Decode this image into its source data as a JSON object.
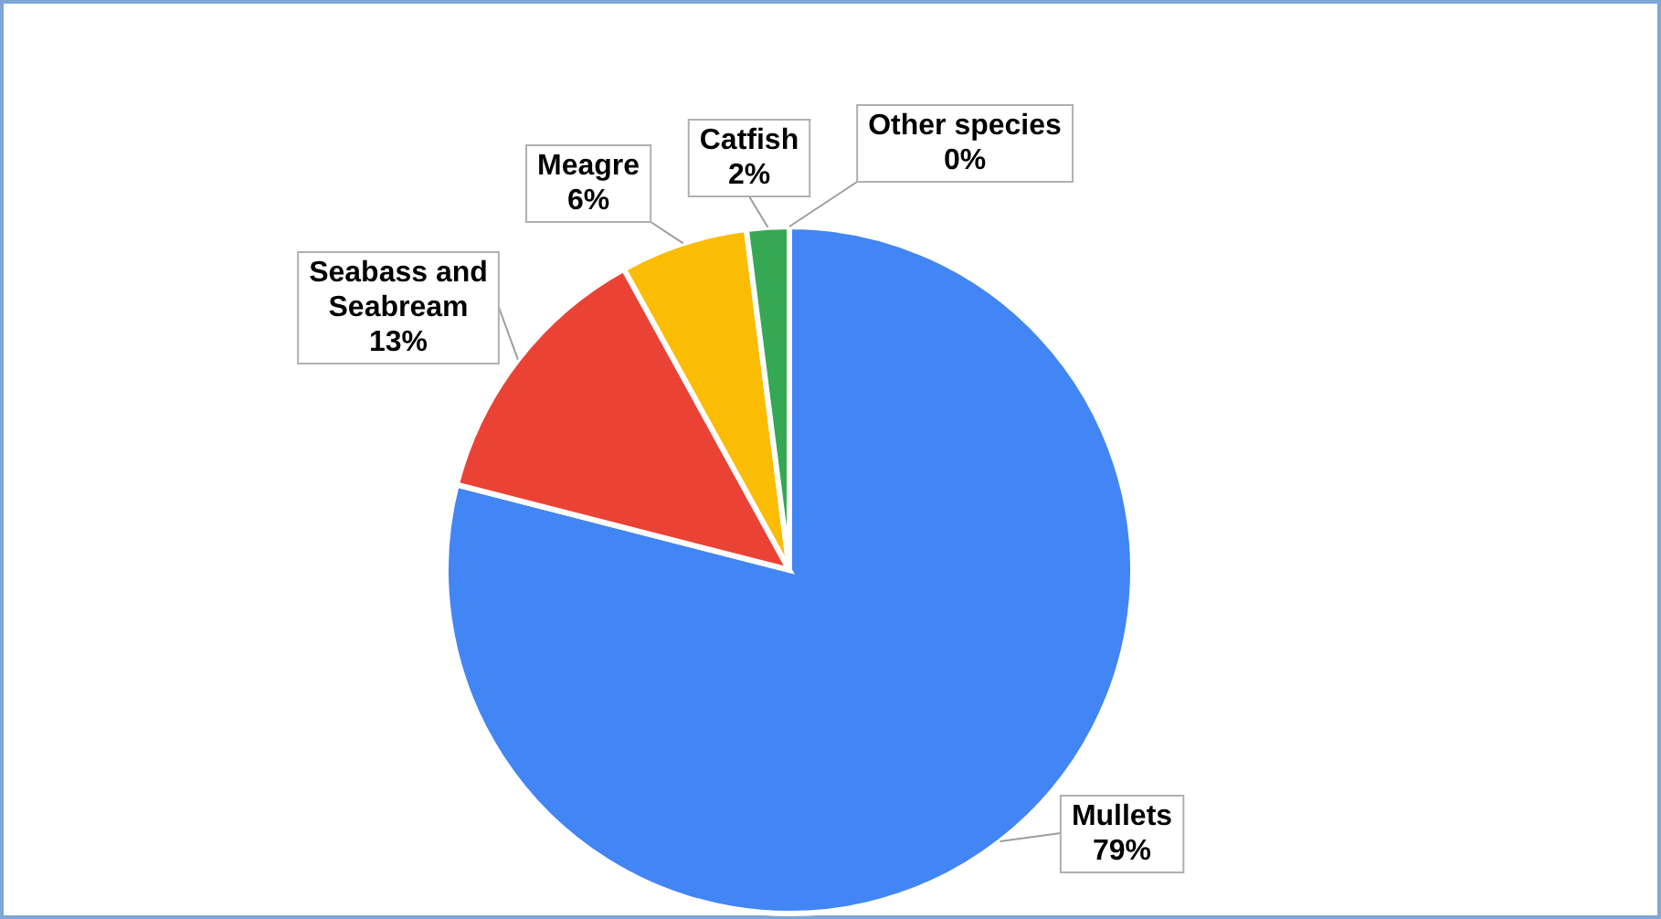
{
  "chart_data": {
    "type": "pie",
    "categories": [
      "Mullets",
      "Seabass and Seabream",
      "Meagre",
      "Catfish",
      "Other species"
    ],
    "values": [
      79,
      13,
      6,
      2,
      0
    ],
    "value_labels": [
      "79%",
      "13%",
      "6%",
      "2%",
      "0%"
    ],
    "colors": [
      "#4285f4",
      "#ea4335",
      "#fbbc04",
      "#34a853",
      "#ff6d01"
    ]
  }
}
